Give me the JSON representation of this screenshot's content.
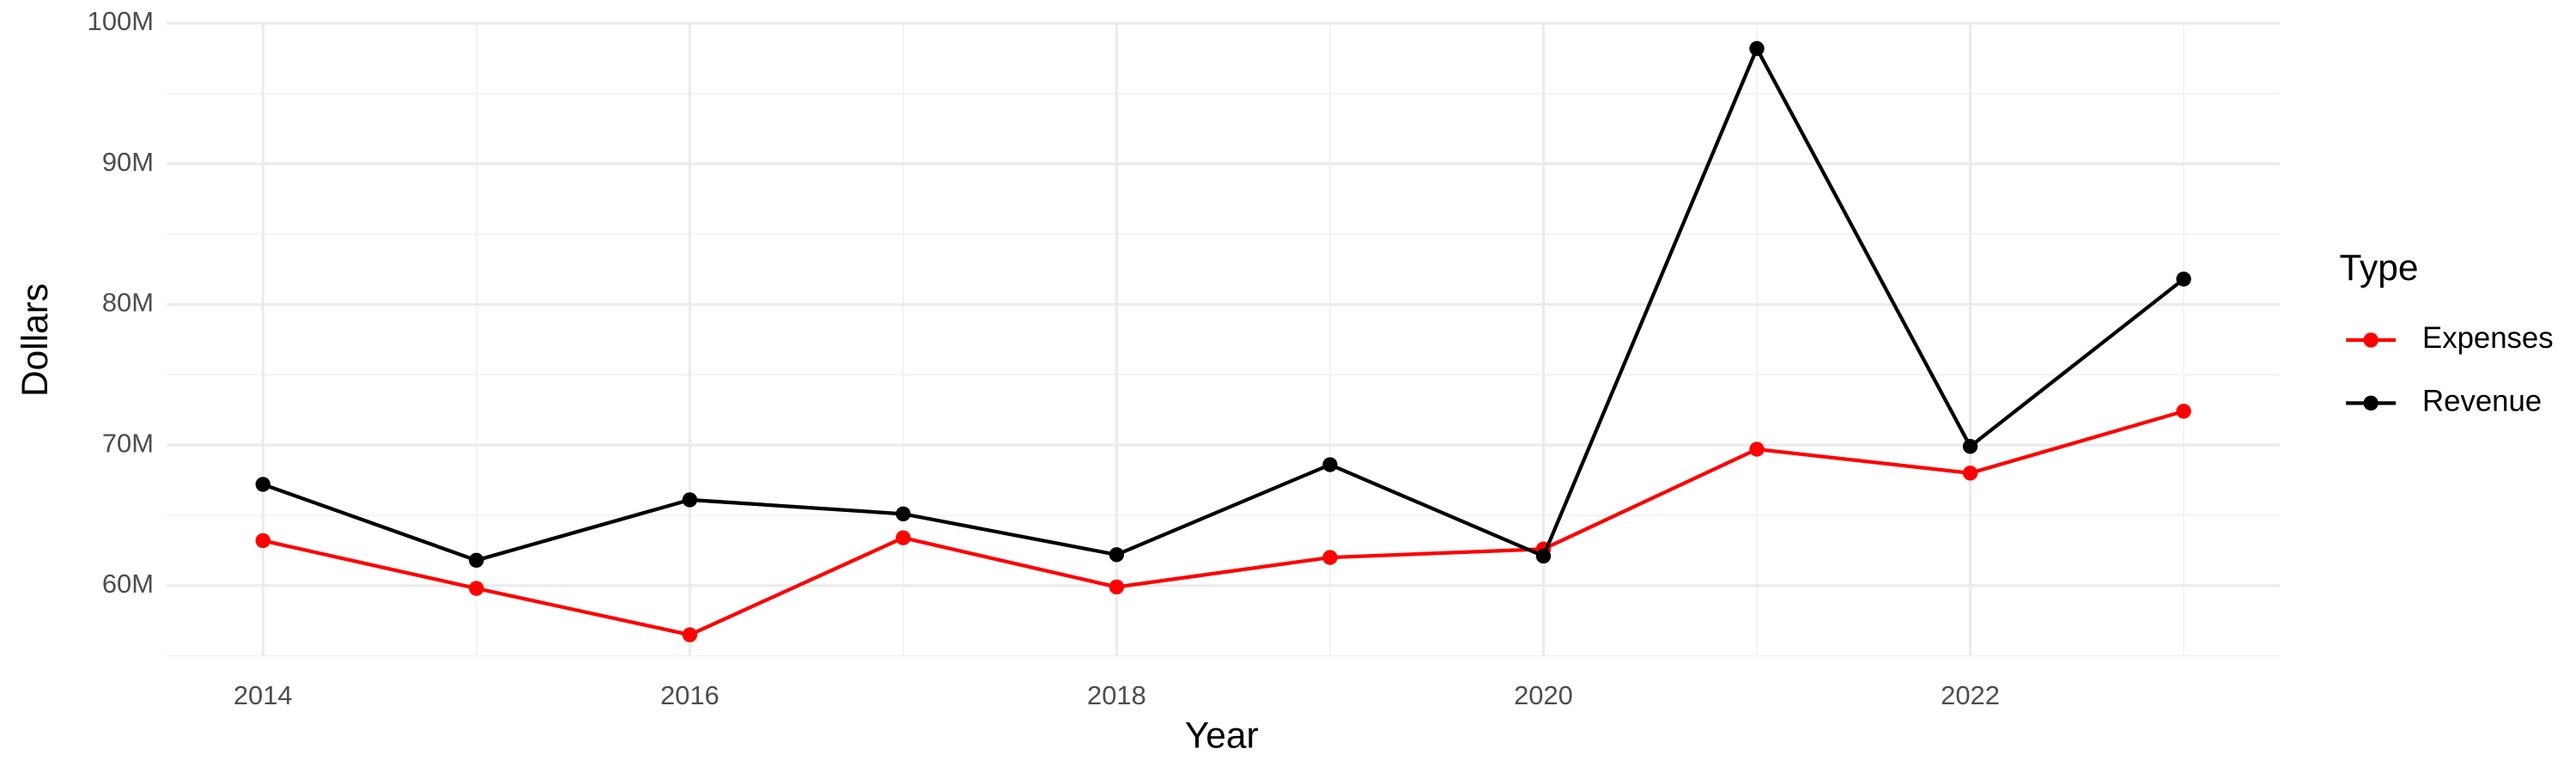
{
  "chart_data": {
    "type": "line",
    "x_label": "Year",
    "y_label": "Dollars",
    "legend_title": "Type",
    "x": [
      2014,
      2015,
      2016,
      2017,
      2018,
      2019,
      2020,
      2021,
      2022,
      2023
    ],
    "series": [
      {
        "name": "Expenses",
        "color": "#ff0000",
        "values": [
          63200000,
          59800000,
          56500000,
          63400000,
          59900000,
          62000000,
          62600000,
          69700000,
          68000000,
          72400000
        ]
      },
      {
        "name": "Revenue",
        "color": "#000000",
        "values": [
          67200000,
          61800000,
          66100000,
          65100000,
          62200000,
          68600000,
          62100000,
          98200000,
          69900000,
          81800000
        ]
      }
    ],
    "xlim": [
      2013.55,
      2023.45
    ],
    "xticks": [
      2014,
      2016,
      2018,
      2020,
      2022
    ],
    "ylim": [
      55000000,
      100000000
    ],
    "yticks": [
      {
        "value": 60000000,
        "label": "60M"
      },
      {
        "value": 70000000,
        "label": "70M"
      },
      {
        "value": 80000000,
        "label": "80M"
      },
      {
        "value": 90000000,
        "label": "90M"
      },
      {
        "value": 100000000,
        "label": "100M"
      }
    ],
    "grid": true,
    "legend": "right"
  }
}
